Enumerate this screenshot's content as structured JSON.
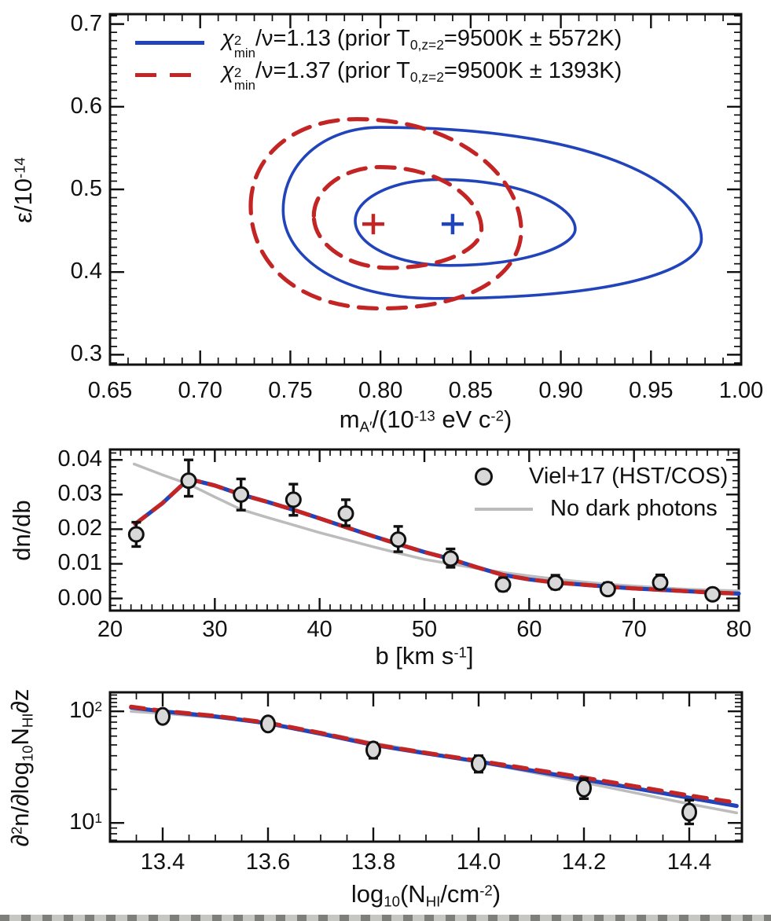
{
  "colors": {
    "blue": "#2244bb",
    "red": "#c32525",
    "gray_line": "#bcbcbc",
    "marker_fill": "#d8d8d8",
    "frame": "#111111"
  },
  "top_legend": {
    "row1": {
      "chi": "χ",
      "sup": "2",
      "sub": "min",
      "mid": "/ν=1.13 (prior T",
      "tsub": "0,z=2",
      "end": "=9500K ± 5572K)"
    },
    "row2": {
      "chi": "χ",
      "sup": "2",
      "sub": "min",
      "mid": "/ν=1.37 (prior T",
      "tsub": "0,z=2",
      "end": "=9500K ± 1393K)"
    }
  },
  "mid_legend": {
    "row1": "Viel+17 (HST/COS)",
    "row2": "No dark photons"
  },
  "labels": {
    "top_y": {
      "p1": "ε/10",
      "sup1": "-14"
    },
    "top_x": {
      "p1": "m",
      "sub1": "A′",
      "p2": "/(10",
      "sup1": "-13",
      "p3": " eV c",
      "sup2": "-2",
      "p4": ")"
    },
    "mid_y": {
      "p1": "dn/db"
    },
    "mid_x": {
      "p1": "b [km s",
      "sup1": "-1",
      "p2": "]"
    },
    "bot_y": {
      "p1": "∂",
      "sup1": "2",
      "p2": "n/∂log",
      "sub1": "10",
      "p3": "N",
      "sub2": "HI",
      "p4": "∂z"
    },
    "bot_x": {
      "p1": "log",
      "sub1": "10",
      "p2": "(N",
      "sub2": "HI",
      "p3": "/cm",
      "sup1": "-2",
      "p4": ")"
    }
  },
  "chart_data": [
    {
      "type": "contour",
      "panel": "top",
      "xlabel": "m_A' / (10^-13 eV c^-2)",
      "ylabel": "epsilon / 10^-14",
      "xlim": [
        0.65,
        1.0
      ],
      "ylim": [
        0.288,
        0.712
      ],
      "x_major_ticks": [
        0.65,
        0.7,
        0.75,
        0.8,
        0.85,
        0.9,
        0.95,
        1.0
      ],
      "x_tick_labels": [
        "0.65",
        "0.70",
        "0.75",
        "0.80",
        "0.85",
        "0.90",
        "0.95",
        "1.00"
      ],
      "x_minor_step": 0.01,
      "y_major_ticks": [
        0.3,
        0.4,
        0.5,
        0.6,
        0.7
      ],
      "y_tick_labels": [
        "0.3",
        "0.4",
        "0.5",
        "0.6",
        "0.7"
      ],
      "y_minor_step": 0.01,
      "legend_position": "top-left",
      "contours": [
        {
          "name": "blue-outer-95",
          "color": "blue",
          "style": "solid",
          "width": 3.6,
          "anchors": {
            "W": [
              0.746,
              0.475
            ],
            "N": [
              0.8,
              0.575
            ],
            "E": [
              0.978,
              0.44
            ],
            "S": [
              0.83,
              0.368
            ]
          },
          "ks": {
            "wn": [
              0.55,
              0.6
            ],
            "ne": [
              0.75,
              0.38
            ],
            "es": [
              0.38,
              0.8
            ],
            "sw": [
              0.6,
              0.55
            ]
          }
        },
        {
          "name": "blue-inner-68",
          "color": "blue",
          "style": "solid",
          "width": 3.6,
          "anchors": {
            "W": [
              0.786,
              0.462
            ],
            "N": [
              0.833,
              0.512
            ],
            "E": [
              0.908,
              0.452
            ],
            "S": [
              0.838,
              0.408
            ]
          },
          "ks": {
            "wn": [
              0.55,
              0.55
            ],
            "ne": [
              0.62,
              0.45
            ],
            "es": [
              0.45,
              0.62
            ],
            "sw": [
              0.55,
              0.55
            ]
          }
        },
        {
          "name": "red-outer-95",
          "color": "red",
          "style": "dashed",
          "width": 5.2,
          "anchors": {
            "W": [
              0.728,
              0.48
            ],
            "N": [
              0.787,
              0.585
            ],
            "E": [
              0.878,
              0.45
            ],
            "S": [
              0.8,
              0.356
            ]
          },
          "ks": {
            "wn": [
              0.55,
              0.62
            ],
            "ne": [
              0.6,
              0.5
            ],
            "es": [
              0.5,
              0.7
            ],
            "sw": [
              0.65,
              0.55
            ]
          }
        },
        {
          "name": "red-inner-68",
          "color": "red",
          "style": "dashed",
          "width": 5.2,
          "anchors": {
            "W": [
              0.763,
              0.468
            ],
            "N": [
              0.8,
              0.527
            ],
            "E": [
              0.856,
              0.452
            ],
            "S": [
              0.805,
              0.405
            ]
          },
          "ks": {
            "wn": [
              0.55,
              0.55
            ],
            "ne": [
              0.58,
              0.5
            ],
            "es": [
              0.5,
              0.6
            ],
            "sw": [
              0.55,
              0.55
            ]
          }
        }
      ],
      "best_fit_points": [
        {
          "name": "blue-best-fit",
          "x": 0.84,
          "y": 0.458,
          "color": "blue"
        },
        {
          "name": "red-best-fit",
          "x": 0.796,
          "y": 0.458,
          "color": "red"
        }
      ]
    },
    {
      "type": "line",
      "panel": "middle",
      "xlabel": "b [km s^-1]",
      "ylabel": "dn/db",
      "xlim": [
        20,
        80
      ],
      "ylim": [
        -0.0035,
        0.043
      ],
      "x_major_ticks": [
        20,
        30,
        40,
        50,
        60,
        70,
        80
      ],
      "x_tick_labels": [
        "20",
        "30",
        "40",
        "50",
        "60",
        "70",
        "80"
      ],
      "x_minor_step": 1,
      "y_major_ticks": [
        0.0,
        0.01,
        0.02,
        0.03,
        0.04
      ],
      "y_tick_labels": [
        "0.00",
        "0.01",
        "0.02",
        "0.03",
        "0.04"
      ],
      "y_minor_step": 0.002,
      "series": [
        {
          "name": "no-dark-photons",
          "color": "gray",
          "style": "solid",
          "width": 3.5,
          "points": [
            [
              22.3,
              0.0388
            ],
            [
              25,
              0.0357
            ],
            [
              27.5,
              0.033
            ],
            [
              30,
              0.0293
            ],
            [
              32.5,
              0.0257
            ],
            [
              35,
              0.0234
            ],
            [
              37.5,
              0.0212
            ],
            [
              40,
              0.019
            ],
            [
              42.5,
              0.017
            ],
            [
              45,
              0.015
            ],
            [
              47.5,
              0.0131
            ],
            [
              50,
              0.0113
            ],
            [
              52.5,
              0.01
            ],
            [
              55,
              0.0087
            ],
            [
              57.5,
              0.0075
            ],
            [
              60,
              0.0065
            ],
            [
              62.5,
              0.0056
            ],
            [
              65,
              0.0048
            ],
            [
              67.5,
              0.0041
            ],
            [
              70,
              0.0036
            ],
            [
              72.5,
              0.0031
            ],
            [
              75,
              0.0027
            ],
            [
              77.5,
              0.0024
            ],
            [
              80,
              0.0022
            ]
          ]
        },
        {
          "name": "dark-photon-model-blue",
          "color": "blue",
          "style": "solid",
          "width": 5.2,
          "points": [
            [
              22.4,
              0.0215
            ],
            [
              25,
              0.0275
            ],
            [
              27.5,
              0.0345
            ],
            [
              30,
              0.0326
            ],
            [
              32.5,
              0.03
            ],
            [
              35,
              0.0279
            ],
            [
              37.5,
              0.0256
            ],
            [
              40,
              0.0231
            ],
            [
              42.5,
              0.0206
            ],
            [
              45,
              0.0181
            ],
            [
              47.5,
              0.0157
            ],
            [
              50,
              0.0134
            ],
            [
              52.5,
              0.0114
            ],
            [
              55,
              0.009
            ],
            [
              57.5,
              0.0068
            ],
            [
              60,
              0.0055
            ],
            [
              62.5,
              0.0046
            ],
            [
              65,
              0.004
            ],
            [
              67.5,
              0.0034
            ],
            [
              70,
              0.0029
            ],
            [
              72.5,
              0.0025
            ],
            [
              75,
              0.0021
            ],
            [
              77.5,
              0.0017
            ],
            [
              80,
              0.0014
            ]
          ]
        },
        {
          "name": "dark-photon-model-red",
          "color": "red",
          "style": "dashed",
          "width": 5.2,
          "points": [
            [
              22.4,
              0.0215
            ],
            [
              25,
              0.0275
            ],
            [
              27.5,
              0.0345
            ],
            [
              30,
              0.0326
            ],
            [
              32.5,
              0.03
            ],
            [
              35,
              0.0279
            ],
            [
              37.5,
              0.0256
            ],
            [
              40,
              0.0231
            ],
            [
              42.5,
              0.0206
            ],
            [
              45,
              0.0181
            ],
            [
              47.5,
              0.0157
            ],
            [
              50,
              0.0134
            ],
            [
              52.5,
              0.0114
            ],
            [
              55,
              0.009
            ],
            [
              57.5,
              0.0068
            ],
            [
              60,
              0.0055
            ],
            [
              62.5,
              0.0046
            ],
            [
              65,
              0.004
            ],
            [
              67.5,
              0.0034
            ],
            [
              70,
              0.0029
            ],
            [
              72.5,
              0.0025
            ],
            [
              75,
              0.0021
            ],
            [
              77.5,
              0.0017
            ],
            [
              80,
              0.0014
            ]
          ]
        }
      ],
      "data_points": {
        "name": "Viel+17 (HST/COS)",
        "marker": "circle",
        "points_x_y_lo_hi": [
          [
            22.5,
            0.0185,
            0.015,
            0.022
          ],
          [
            27.5,
            0.034,
            0.0295,
            0.04
          ],
          [
            32.5,
            0.03,
            0.0255,
            0.0345
          ],
          [
            37.5,
            0.0285,
            0.024,
            0.033
          ],
          [
            42.5,
            0.0245,
            0.021,
            0.0285
          ],
          [
            47.5,
            0.017,
            0.0135,
            0.0208
          ],
          [
            52.5,
            0.0115,
            0.009,
            0.0143
          ],
          [
            57.5,
            0.004,
            0.0022,
            0.006
          ],
          [
            62.5,
            0.0045,
            0.0027,
            0.0067
          ],
          [
            67.5,
            0.0027,
            0.0012,
            0.0045
          ],
          [
            72.5,
            0.0046,
            0.0028,
            0.0068
          ],
          [
            77.5,
            0.0012,
            0.0002,
            0.0027
          ]
        ]
      }
    },
    {
      "type": "line",
      "panel": "bottom",
      "xlabel": "log10(N_HI/cm^-2)",
      "ylabel": "d2n / dlog10(N_HI) dz",
      "xlim": [
        13.3,
        14.5
      ],
      "ylim": [
        6.8,
        148
      ],
      "y_scale": "log",
      "x_major_ticks": [
        13.4,
        13.6,
        13.8,
        14.0,
        14.2,
        14.4
      ],
      "x_tick_labels": [
        "13.4",
        "13.6",
        "13.8",
        "14.0",
        "14.2",
        "14.4"
      ],
      "x_minor_step": 0.05,
      "y_major_ticks": [
        10,
        100
      ],
      "y_tick_labels": [
        {
          "base": "10",
          "exp": "1"
        },
        {
          "base": "10",
          "exp": "2"
        }
      ],
      "y_minor_ticks": [
        7,
        8,
        9,
        20,
        30,
        40,
        50,
        60,
        70,
        80,
        90,
        110,
        120,
        130,
        140
      ],
      "series": [
        {
          "name": "no-dark-photons",
          "color": "gray",
          "style": "solid",
          "width": 3.5,
          "points": [
            [
              13.34,
              100
            ],
            [
              13.4,
              96
            ],
            [
              13.5,
              88
            ],
            [
              13.6,
              78
            ],
            [
              13.7,
              65
            ],
            [
              13.8,
              52
            ],
            [
              13.9,
              43
            ],
            [
              14.0,
              35
            ],
            [
              14.1,
              28.5
            ],
            [
              14.2,
              23
            ],
            [
              14.3,
              18.5
            ],
            [
              14.4,
              14.8
            ],
            [
              14.49,
              12.3
            ]
          ]
        },
        {
          "name": "dark-photon-model-blue",
          "color": "blue",
          "style": "solid",
          "width": 5.2,
          "points": [
            [
              13.34,
              108
            ],
            [
              13.4,
              100
            ],
            [
              13.5,
              90
            ],
            [
              13.6,
              78
            ],
            [
              13.7,
              63
            ],
            [
              13.8,
              50
            ],
            [
              13.9,
              42
            ],
            [
              14.0,
              35.5
            ],
            [
              14.1,
              29.5
            ],
            [
              14.2,
              24.5
            ],
            [
              14.3,
              20.3
            ],
            [
              14.4,
              16.8
            ],
            [
              14.49,
              14.2
            ]
          ]
        },
        {
          "name": "dark-photon-model-red",
          "color": "red",
          "style": "dashed",
          "width": 5.2,
          "points": [
            [
              13.34,
              110
            ],
            [
              13.4,
              101
            ],
            [
              13.5,
              91
            ],
            [
              13.6,
              79
            ],
            [
              13.7,
              64
            ],
            [
              13.8,
              50.5
            ],
            [
              13.9,
              42.5
            ],
            [
              14.0,
              36
            ],
            [
              14.1,
              30.3
            ],
            [
              14.2,
              25.5
            ],
            [
              14.3,
              21.2
            ],
            [
              14.4,
              17.6
            ],
            [
              14.49,
              15.2
            ]
          ]
        }
      ],
      "data_points": {
        "name": "Viel+17 (HST/COS)",
        "marker": "ellipse",
        "points_x_y_lo_hi": [
          [
            13.4,
            90,
            79,
            101
          ],
          [
            13.6,
            77,
            68,
            87
          ],
          [
            13.8,
            45,
            38,
            52
          ],
          [
            14.0,
            34,
            28.5,
            40
          ],
          [
            14.2,
            20.5,
            16.5,
            25
          ],
          [
            14.4,
            12.5,
            9.8,
            16
          ]
        ]
      }
    }
  ]
}
